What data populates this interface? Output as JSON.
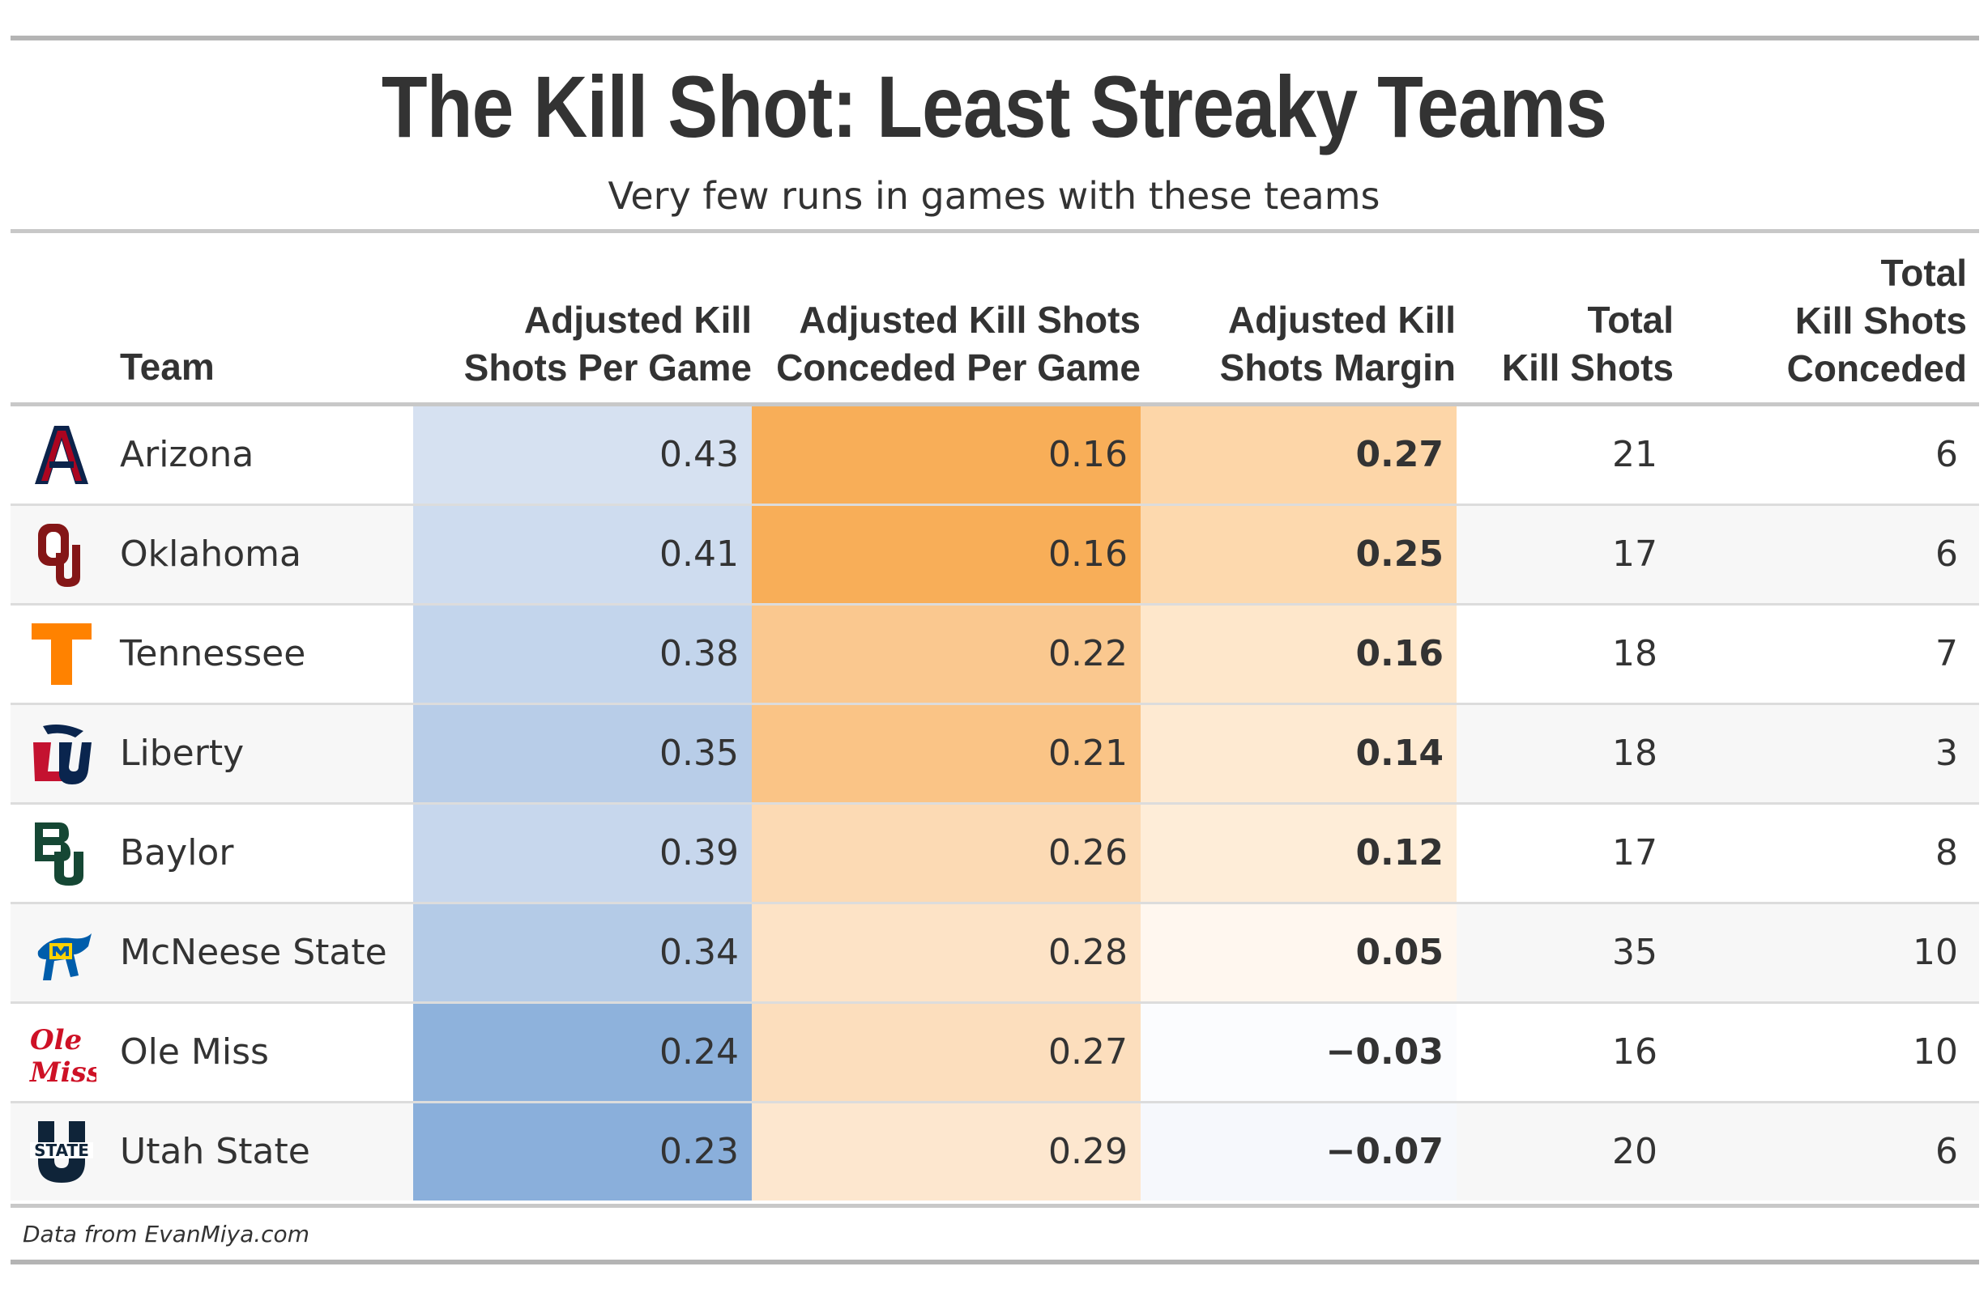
{
  "title": "The Kill Shot: Least Streaky Teams",
  "subtitle": "Very few runs in games with these teams",
  "source": "Data from EvanMiya.com",
  "chart_data": {
    "type": "table",
    "columns": [
      {
        "key": "team",
        "label": "Team"
      },
      {
        "key": "adj_ks_pg",
        "label": "Adjusted Kill\nShots Per Game"
      },
      {
        "key": "adj_ksc_pg",
        "label": "Adjusted Kill Shots\nConceded Per Game"
      },
      {
        "key": "adj_margin",
        "label": "Adjusted Kill\nShots Margin"
      },
      {
        "key": "total_ks",
        "label": "Total\nKill Shots"
      },
      {
        "key": "total_ksc",
        "label": "Total\nKill Shots\nConceded"
      }
    ],
    "rows": [
      {
        "team": "Arizona",
        "logo": "arizona-logo-icon",
        "adj_ks_pg": "0.43",
        "adj_ksc_pg": "0.16",
        "adj_margin": "0.27",
        "total_ks": "21",
        "total_ksc": "6"
      },
      {
        "team": "Oklahoma",
        "logo": "oklahoma-logo-icon",
        "adj_ks_pg": "0.41",
        "adj_ksc_pg": "0.16",
        "adj_margin": "0.25",
        "total_ks": "17",
        "total_ksc": "6"
      },
      {
        "team": "Tennessee",
        "logo": "tennessee-logo-icon",
        "adj_ks_pg": "0.38",
        "adj_ksc_pg": "0.22",
        "adj_margin": "0.16",
        "total_ks": "18",
        "total_ksc": "7"
      },
      {
        "team": "Liberty",
        "logo": "liberty-logo-icon",
        "adj_ks_pg": "0.35",
        "adj_ksc_pg": "0.21",
        "adj_margin": "0.14",
        "total_ks": "18",
        "total_ksc": "3"
      },
      {
        "team": "Baylor",
        "logo": "baylor-logo-icon",
        "adj_ks_pg": "0.39",
        "adj_ksc_pg": "0.26",
        "adj_margin": "0.12",
        "total_ks": "17",
        "total_ksc": "8"
      },
      {
        "team": "McNeese State",
        "logo": "mcneese-logo-icon",
        "adj_ks_pg": "0.34",
        "adj_ksc_pg": "0.28",
        "adj_margin": "0.05",
        "total_ks": "35",
        "total_ksc": "10"
      },
      {
        "team": "Ole Miss",
        "logo": "ole-miss-logo-icon",
        "adj_ks_pg": "0.24",
        "adj_ksc_pg": "0.27",
        "adj_margin": "−0.03",
        "total_ks": "16",
        "total_ksc": "10"
      },
      {
        "team": "Utah State",
        "logo": "utah-state-logo-icon",
        "adj_ks_pg": "0.23",
        "adj_ksc_pg": "0.29",
        "adj_margin": "−0.07",
        "total_ks": "20",
        "total_ksc": "6"
      }
    ],
    "colors": {
      "blue_scale": [
        "#d6e1f1",
        "#8aafdb"
      ],
      "orange_scale": [
        "#fde7cf",
        "#f8ae58"
      ],
      "margin_positive": "#fdd6a8",
      "margin_negative": "#dbe5f3",
      "row_stripe": "#f7f7f7",
      "text": "#333333"
    }
  }
}
